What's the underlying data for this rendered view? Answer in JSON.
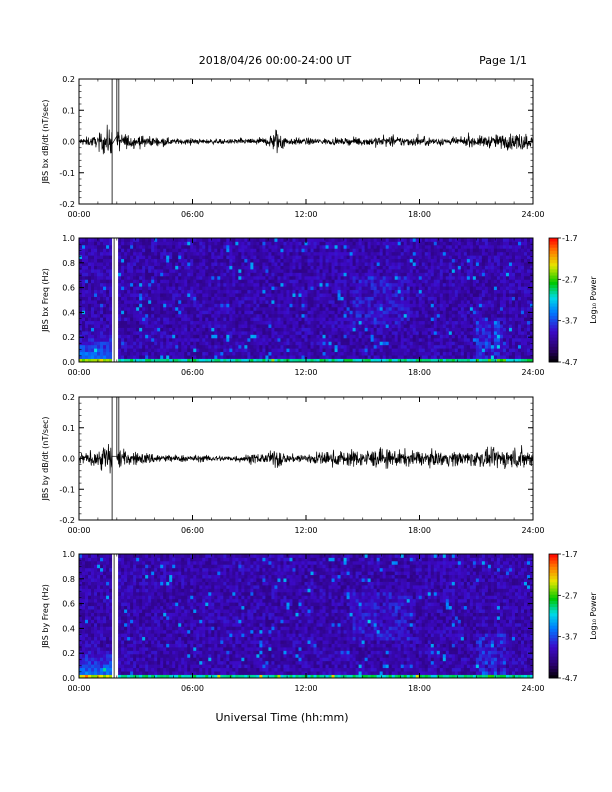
{
  "header": {
    "title": "2018/04/26  00:00-24:00 UT",
    "page": "Page 1/1"
  },
  "xlabel": "Universal Time (hh:mm)",
  "chart_data": [
    {
      "type": "line",
      "ylabel": "JBS bx dB/dt (nT/sec)",
      "xlim": [
        0,
        24
      ],
      "ylim": [
        -0.2,
        0.2
      ],
      "x_ticks": [
        "00:00",
        "06:00",
        "12:00",
        "18:00",
        "24:00"
      ],
      "y_ticks": [
        "-0.2",
        "-0.1",
        "0.0",
        "0.1",
        "0.2"
      ],
      "baseline": 0.0,
      "envelope": [
        {
          "x": 0.0,
          "amp": 0.01
        },
        {
          "x": 1.0,
          "amp": 0.015
        },
        {
          "x": 1.4,
          "amp": 0.04
        },
        {
          "x": 2.5,
          "amp": 0.02
        },
        {
          "x": 5.0,
          "amp": 0.008
        },
        {
          "x": 8.0,
          "amp": 0.006
        },
        {
          "x": 10.0,
          "amp": 0.012
        },
        {
          "x": 10.5,
          "amp": 0.04
        },
        {
          "x": 11.0,
          "amp": 0.01
        },
        {
          "x": 14.0,
          "amp": 0.008
        },
        {
          "x": 16.0,
          "amp": 0.015
        },
        {
          "x": 18.0,
          "amp": 0.012
        },
        {
          "x": 20.0,
          "amp": 0.01
        },
        {
          "x": 22.0,
          "amp": 0.018
        },
        {
          "x": 23.5,
          "amp": 0.025
        },
        {
          "x": 24.0,
          "amp": 0.015
        }
      ],
      "gap": {
        "start": 1.75,
        "end": 2.0
      }
    },
    {
      "type": "heatmap",
      "ylabel": "JBS bx Freq (Hz)",
      "xlim": [
        0,
        24
      ],
      "ylim": [
        0,
        1.0
      ],
      "x_ticks": [
        "00:00",
        "06:00",
        "12:00",
        "18:00",
        "24:00"
      ],
      "y_ticks": [
        "0.0",
        "0.2",
        "0.4",
        "0.6",
        "0.8",
        "1.0"
      ],
      "colorbar": {
        "label": "Log₁₀ Power",
        "min": -4.7,
        "max": -1.7,
        "ticks": [
          "-1.7",
          "-2.7",
          "-3.7",
          "-4.7"
        ]
      },
      "gap": {
        "start": 1.75,
        "end": 2.0
      }
    },
    {
      "type": "line",
      "ylabel": "JBS by dB/dt (nT/sec)",
      "xlim": [
        0,
        24
      ],
      "ylim": [
        -0.2,
        0.2
      ],
      "x_ticks": [
        "00:00",
        "06:00",
        "12:00",
        "18:00",
        "24:00"
      ],
      "y_ticks": [
        "-0.2",
        "-0.1",
        "0.0",
        "0.1",
        "0.2"
      ],
      "baseline": 0.0,
      "envelope": [
        {
          "x": 0.0,
          "amp": 0.015
        },
        {
          "x": 1.0,
          "amp": 0.02
        },
        {
          "x": 1.4,
          "amp": 0.05
        },
        {
          "x": 2.5,
          "amp": 0.02
        },
        {
          "x": 5.0,
          "amp": 0.01
        },
        {
          "x": 8.0,
          "amp": 0.008
        },
        {
          "x": 10.0,
          "amp": 0.015
        },
        {
          "x": 10.5,
          "amp": 0.03
        },
        {
          "x": 11.0,
          "amp": 0.01
        },
        {
          "x": 13.0,
          "amp": 0.02
        },
        {
          "x": 16.0,
          "amp": 0.025
        },
        {
          "x": 18.0,
          "amp": 0.02
        },
        {
          "x": 20.0,
          "amp": 0.02
        },
        {
          "x": 22.0,
          "amp": 0.025
        },
        {
          "x": 23.5,
          "amp": 0.03
        },
        {
          "x": 24.0,
          "amp": 0.02
        }
      ],
      "gap": {
        "start": 1.75,
        "end": 2.0
      }
    },
    {
      "type": "heatmap",
      "ylabel": "JBS by Freq (Hz)",
      "xlim": [
        0,
        24
      ],
      "ylim": [
        0,
        1.0
      ],
      "x_ticks": [
        "00:00",
        "06:00",
        "12:00",
        "18:00",
        "24:00"
      ],
      "y_ticks": [
        "0.0",
        "0.2",
        "0.4",
        "0.6",
        "0.8",
        "1.0"
      ],
      "colorbar": {
        "label": "Log₁₀ Power",
        "min": -4.7,
        "max": -1.7,
        "ticks": [
          "-1.7",
          "-2.7",
          "-3.7",
          "-4.7"
        ]
      },
      "gap": {
        "start": 1.75,
        "end": 2.0
      }
    }
  ]
}
